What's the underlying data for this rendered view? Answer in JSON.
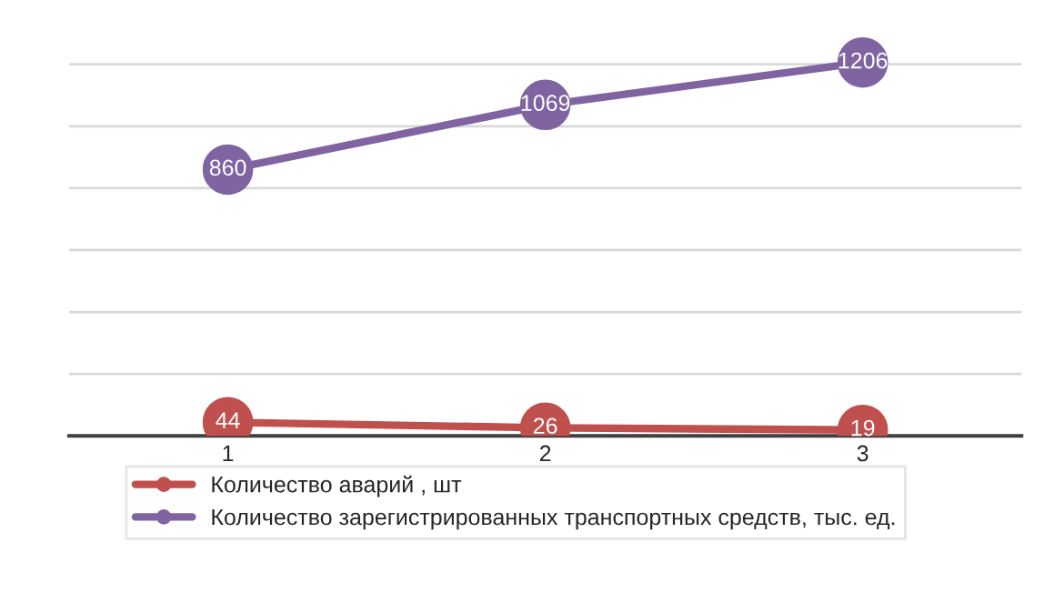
{
  "chart_data": {
    "type": "line",
    "categories": [
      "1",
      "2",
      "3"
    ],
    "series": [
      {
        "name": "Количество аварий , шт",
        "color": "#c0504d",
        "values": [
          44,
          26,
          19
        ]
      },
      {
        "name": "Количество зарегистрированных транспортных средств, тыс. ед.",
        "color": "#8064a2",
        "values": [
          860,
          1069,
          1206
        ]
      }
    ],
    "yticks": [
      {
        "value": 0,
        "label": null
      },
      {
        "value": 200,
        "label": null
      },
      {
        "value": 400,
        "label": null
      },
      {
        "value": 600,
        "label": null
      },
      {
        "value": 800,
        "label": null
      },
      {
        "value": 1000,
        "label": null
      },
      {
        "value": 1200,
        "label": null
      }
    ],
    "tick_labels": "x",
    "grid": "y",
    "legend": "bottom",
    "marker": "circle",
    "line_style": "solid",
    "data_labels": true
  }
}
